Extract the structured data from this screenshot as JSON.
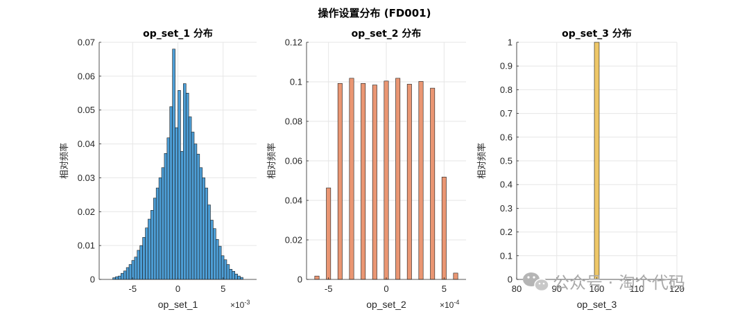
{
  "figure": {
    "title": "操作设置分布 (FD001)",
    "watermark": "公众号 · 淘个代码"
  },
  "chart_data": [
    {
      "type": "bar",
      "title": "op_set_1 分布",
      "xlabel": "op_set_1",
      "ylabel": "相对频率",
      "x_exponent": "×10",
      "x_exponent_power": "-3",
      "xlim": [
        -8.7,
        8.7
      ],
      "ylim": [
        0,
        0.07
      ],
      "xticks": [
        -5,
        0,
        5
      ],
      "yticks": [
        0,
        0.01,
        0.02,
        0.03,
        0.04,
        0.05,
        0.06,
        0.07
      ],
      "bin_start": -7.2,
      "bin_width": 0.3,
      "values": [
        0.0005,
        0.0008,
        0.001,
        0.0018,
        0.0025,
        0.0035,
        0.0044,
        0.0056,
        0.0066,
        0.0086,
        0.01,
        0.0124,
        0.0152,
        0.0178,
        0.0204,
        0.024,
        0.027,
        0.03,
        0.033,
        0.0372,
        0.0418,
        0.051,
        0.068,
        0.0448,
        0.0558,
        0.0378,
        0.0578,
        0.055,
        0.048,
        0.0435,
        0.04,
        0.037,
        0.033,
        0.03,
        0.027,
        0.022,
        0.0175,
        0.015,
        0.0118,
        0.0098,
        0.007,
        0.0058,
        0.0044,
        0.003,
        0.0024,
        0.0016,
        0.001,
        0.0006
      ],
      "color": "#4d9ed6"
    },
    {
      "type": "bar",
      "title": "op_set_2 分布",
      "xlabel": "op_set_2",
      "ylabel": "相对频率",
      "x_exponent": "×10",
      "x_exponent_power": "-4",
      "xlim": [
        -6.9,
        6.9
      ],
      "ylim": [
        0,
        0.12
      ],
      "xticks": [
        -5,
        0,
        5
      ],
      "yticks": [
        0,
        0.02,
        0.04,
        0.06,
        0.08,
        0.1,
        0.12
      ],
      "bar_width": 0.38,
      "x": [
        -6,
        -5,
        -4,
        -3,
        -2,
        -1,
        0,
        1,
        2,
        3,
        4,
        5,
        6
      ],
      "values": [
        0.0017,
        0.0463,
        0.0992,
        0.1018,
        0.0992,
        0.0984,
        0.1004,
        0.1018,
        0.0988,
        0.1002,
        0.0968,
        0.0518,
        0.0032
      ],
      "color": "#ea9673"
    },
    {
      "type": "bar",
      "title": "op_set_3 分布",
      "xlabel": "op_set_3",
      "ylabel": "相对频率",
      "xlim": [
        80,
        120
      ],
      "ylim": [
        0,
        1
      ],
      "xticks": [
        80,
        90,
        100,
        110,
        120
      ],
      "yticks": [
        0,
        0.1,
        0.2,
        0.3,
        0.4,
        0.5,
        0.6,
        0.7,
        0.8,
        0.9,
        1
      ],
      "bar_width": 1.2,
      "x": [
        100
      ],
      "values": [
        1.0
      ],
      "color": "#eec768"
    }
  ]
}
